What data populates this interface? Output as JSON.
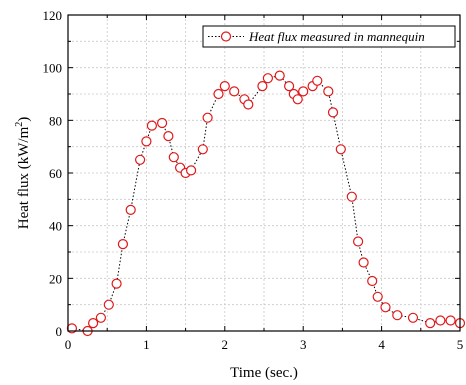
{
  "chart_data": {
    "type": "line",
    "title": "",
    "xlabel": "Time (sec.)",
    "ylabel": "Heat flux (kW/m",
    "ylabel_sup": "2",
    "ylabel_end": ")",
    "xlim": [
      0,
      5
    ],
    "ylim": [
      0,
      120
    ],
    "x_ticks": [
      "0",
      "1",
      "2",
      "3",
      "4",
      "5"
    ],
    "y_ticks": [
      "0",
      "20",
      "40",
      "60",
      "80",
      "100",
      "120"
    ],
    "grid": true,
    "legend_position": "top-right",
    "series": [
      {
        "name": "Heat flux measured in mannequin",
        "color": "#e0191b",
        "line_color": "#000000",
        "line_style": "dotted",
        "marker": "open-circle",
        "x": [
          0.05,
          0.25,
          0.32,
          0.42,
          0.52,
          0.62,
          0.7,
          0.8,
          0.92,
          1.0,
          1.07,
          1.2,
          1.28,
          1.35,
          1.43,
          1.5,
          1.57,
          1.72,
          1.78,
          1.92,
          2.0,
          2.12,
          2.25,
          2.3,
          2.48,
          2.55,
          2.7,
          2.82,
          2.88,
          2.93,
          3.0,
          3.12,
          3.18,
          3.32,
          3.38,
          3.48,
          3.62,
          3.7,
          3.77,
          3.88,
          3.95,
          4.05,
          4.2,
          4.4,
          4.62,
          4.75,
          4.88,
          5.0
        ],
        "y": [
          1,
          0,
          3,
          5,
          10,
          18,
          33,
          46,
          65,
          72,
          78,
          79,
          74,
          66,
          62,
          60,
          61,
          69,
          81,
          90,
          93,
          91,
          88,
          86,
          93,
          96,
          97,
          93,
          90,
          88,
          91,
          93,
          95,
          91,
          83,
          69,
          51,
          34,
          26,
          19,
          13,
          9,
          6,
          5,
          3,
          4,
          4,
          3
        ]
      }
    ]
  }
}
